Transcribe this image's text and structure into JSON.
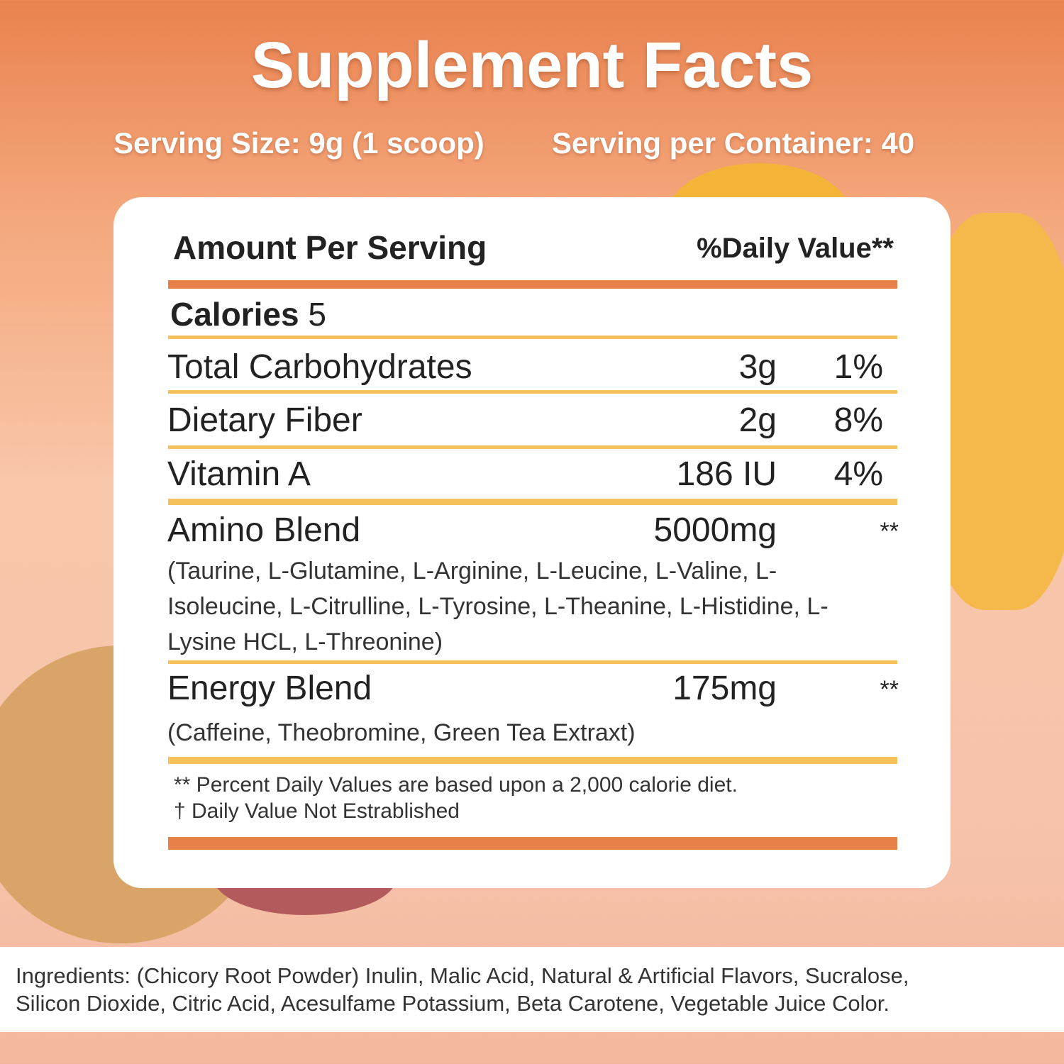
{
  "header": {
    "title": "Supplement Facts",
    "serving_size": "Serving Size: 9g (1 scoop)",
    "servings_per_container": "Serving per Container: 40"
  },
  "table": {
    "header": [
      "Amount Per Serving",
      "%Daily Value**"
    ],
    "calories": {
      "label": "Calories",
      "value": "5"
    },
    "rows": [
      {
        "name": "Total Carbohydrates",
        "amount": "3g",
        "dv": "1%"
      },
      {
        "name": "Dietary Fiber",
        "amount": "2g",
        "dv": "8%"
      },
      {
        "name": "Vitamin A",
        "amount": "186 IU",
        "dv": "4%"
      }
    ],
    "blends": [
      {
        "name": "Amino Blend",
        "amount": "5000mg",
        "dv": "**",
        "detail": "(Taurine, L-Glutamine, L-Arginine, L-Leucine, L-Valine, L-Isoleucine, L-Citrulline, L-Tyrosine, L-Theanine, L-Histidine, L-Lysine HCL, L-Threonine)"
      },
      {
        "name": "Energy Blend",
        "amount": "175mg",
        "dv": "**",
        "detail": "(Caffeine, Theobromine, Green Tea Extraxt)"
      }
    ],
    "footnotes": [
      "** Percent Daily Values are based upon a 2,000 calorie diet.",
      "† Daily Value Not Estrablished"
    ]
  },
  "ingredients": [
    "Ingredients: (Chicory Root Powder) Inulin, Malic Acid, Natural & Artificial Flavors, Sucralose,",
    "Silicon Dioxide, Citric Acid, Acesulfame Potassium, Beta Carotene, Vegetable Juice Color."
  ]
}
